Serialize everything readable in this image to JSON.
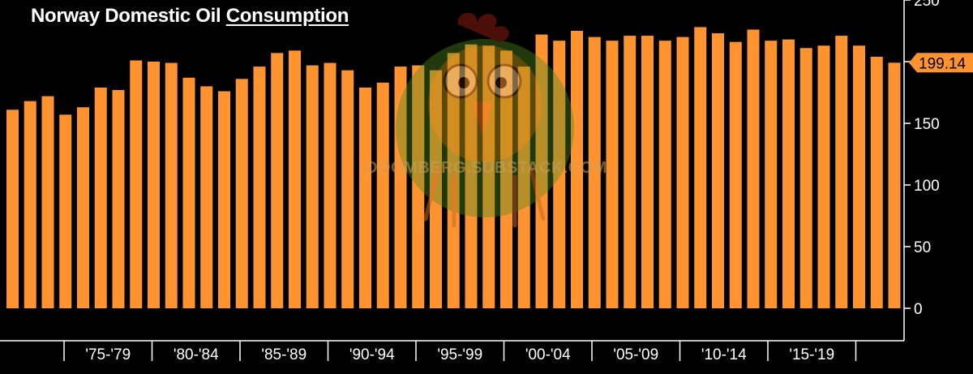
{
  "title": {
    "part1": "Norway Domestic Oil ",
    "part2": "Consumption"
  },
  "watermark": "DOOMBERG.SUBSTACK.COM",
  "colors": {
    "bar": "#ff9330",
    "background": "#000000",
    "axis": "#ffffff",
    "last_value_box": "#ff9330"
  },
  "chart_data": {
    "type": "bar",
    "title": "Norway Domestic Oil Consumption",
    "xlabel": "",
    "ylabel": "",
    "ylim": [
      0,
      250
    ],
    "yticks": [
      0,
      50,
      100,
      150,
      200,
      250
    ],
    "grid": false,
    "last_value_label": "199.14",
    "x_group_labels": [
      "'75-'79",
      "'80-'84",
      "'85-'89",
      "'90-'94",
      "'95-'99",
      "'00-'04",
      "'05-'09",
      "'10-'14",
      "'15-'19"
    ],
    "values": [
      161,
      168,
      172,
      157,
      163,
      179,
      177,
      201,
      200,
      199,
      187,
      180,
      176,
      186,
      196,
      207,
      209,
      197,
      199,
      193,
      179,
      183,
      196,
      197,
      193,
      207,
      214,
      213,
      209,
      196,
      222,
      217,
      225,
      220,
      217,
      221,
      221,
      217,
      220,
      228,
      223,
      216,
      226,
      217,
      218,
      211,
      213,
      221,
      213,
      204,
      199.14
    ]
  }
}
